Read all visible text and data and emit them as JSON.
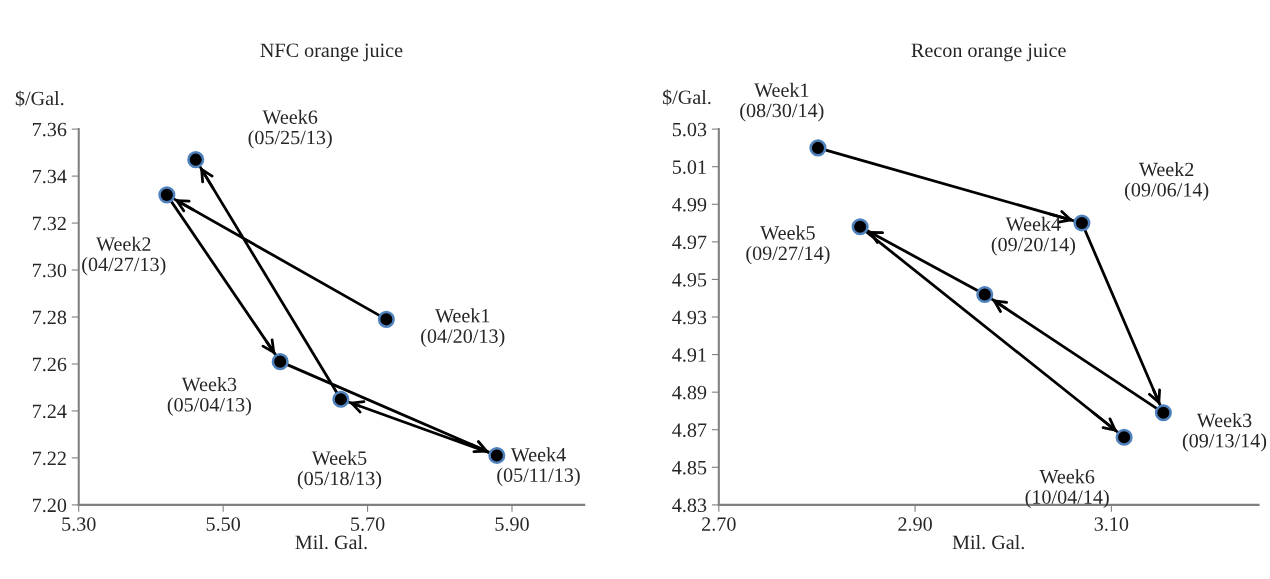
{
  "chart_data": [
    {
      "type": "line",
      "title": "NFC orange juice",
      "xlabel": "Mil. Gal.",
      "ylabel": "$/Gal.",
      "marker": "circle",
      "grid": false,
      "legend": false,
      "xlim": [
        5.3,
        6.0
      ],
      "xticks": [
        {
          "value": 5.3,
          "label": "5.30"
        },
        {
          "value": 5.5,
          "label": "5.50"
        },
        {
          "value": 5.7,
          "label": "5.70"
        },
        {
          "value": 5.9,
          "label": "5.90"
        }
      ],
      "ylim": [
        7.2,
        7.36
      ],
      "yticks": [
        {
          "value": 7.2,
          "label": "7.20"
        },
        {
          "value": 7.22,
          "label": "7.22"
        },
        {
          "value": 7.24,
          "label": "7.24"
        },
        {
          "value": 7.26,
          "label": "7.26"
        },
        {
          "value": 7.28,
          "label": "7.28"
        },
        {
          "value": 7.3,
          "label": "7.30"
        },
        {
          "value": 7.32,
          "label": "7.32"
        },
        {
          "value": 7.34,
          "label": "7.34"
        },
        {
          "value": 7.36,
          "label": "7.36"
        }
      ],
      "series": [
        {
          "color": "#000000",
          "x": [
            5.726,
            5.422,
            5.579,
            5.879,
            5.663,
            5.462
          ],
          "values": [
            7.279,
            7.332,
            7.261,
            7.221,
            7.245,
            7.347
          ]
        }
      ],
      "annotations": [
        {
          "text": "Week1\n(04/20/13)",
          "x": 5.726,
          "y": 7.279
        },
        {
          "text": "Week2\n(04/27/13)",
          "x": 5.422,
          "y": 7.332
        },
        {
          "text": "Week3\n(05/04/13)",
          "x": 5.579,
          "y": 7.261
        },
        {
          "text": "Week4\n(05/11/13)",
          "x": 5.879,
          "y": 7.221
        },
        {
          "text": "Week5\n(05/18/13)",
          "x": 5.663,
          "y": 7.245
        },
        {
          "text": "Week6\n(05/25/13)",
          "x": 5.462,
          "y": 7.347
        }
      ]
    },
    {
      "type": "line",
      "title": "Recon orange juice",
      "xlabel": "Mil. Gal.",
      "ylabel": "$/Gal.",
      "marker": "circle",
      "grid": false,
      "legend": false,
      "xlim": [
        2.7,
        3.25
      ],
      "xticks": [
        {
          "value": 2.7,
          "label": "2.70"
        },
        {
          "value": 2.9,
          "label": "2.90"
        },
        {
          "value": 3.1,
          "label": "3.10"
        }
      ],
      "ylim": [
        4.83,
        5.03
      ],
      "yticks": [
        4.83,
        4.85,
        4.87,
        4.89,
        4.91,
        4.93,
        4.95,
        4.97,
        4.99,
        5.01,
        5.03
      ],
      "series": [
        {
          "color": "#000000",
          "x": [
            2.801,
            3.07,
            3.153,
            2.971,
            2.844,
            3.113
          ],
          "values": [
            5.02,
            4.98,
            4.879,
            4.942,
            4.978,
            4.866
          ]
        }
      ],
      "annotations": [
        {
          "text": "Week1\n(08/30/14)",
          "x": 2.801,
          "y": 5.02
        },
        {
          "text": "Week2\n(09/06/14)",
          "x": 3.07,
          "y": 4.98
        },
        {
          "text": "Week3\n(09/13/14)",
          "x": 3.153,
          "y": 4.879
        },
        {
          "text": "Week4\n(09/20/14)",
          "x": 2.971,
          "y": 4.942
        },
        {
          "text": "Week5\n(09/27/14)",
          "x": 2.844,
          "y": 4.978
        },
        {
          "text": "Week6\n(10/04/14)",
          "x": 3.113,
          "y": 4.866
        }
      ]
    }
  ]
}
